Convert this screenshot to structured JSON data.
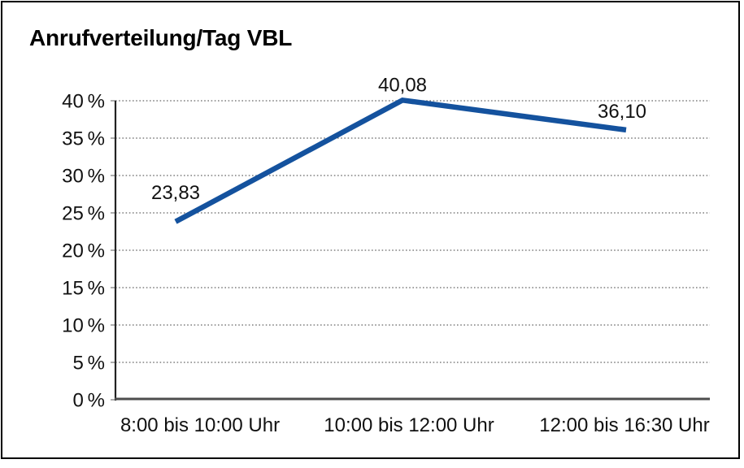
{
  "chart_data": {
    "type": "line",
    "title": "Anrufverteilung/Tag VBL",
    "categories": [
      "8:00 bis 10:00 Uhr",
      "10:00 bis 12:00 Uhr",
      "12:00 bis 16:30 Uhr"
    ],
    "values": [
      23.83,
      40.08,
      36.1
    ],
    "point_labels": [
      "23,83",
      "40,08",
      "36,10"
    ],
    "xlabel": "",
    "ylabel": "",
    "ylim": [
      0,
      40
    ],
    "ytick_step": 5,
    "ytick_labels": [
      "0 %",
      "5 %",
      "10 %",
      "15 %",
      "20 %",
      "25 %",
      "30 %",
      "35 %",
      "40 %"
    ],
    "grid": "horizontal-dotted",
    "legend": "none",
    "colors": {
      "line": "#14529E",
      "text": "#111111",
      "grid": "#666666",
      "y_axis": "#222222",
      "x_axis": "#4d4d4d",
      "frame_border": "#000000",
      "background": "#ffffff"
    }
  }
}
